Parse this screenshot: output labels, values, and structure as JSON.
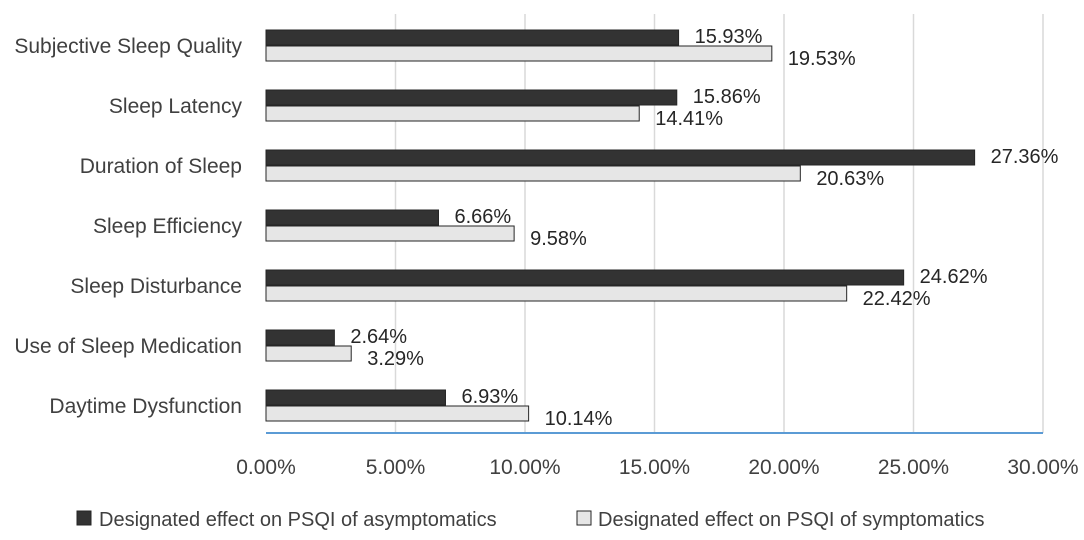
{
  "chart_data": {
    "type": "bar",
    "orientation": "horizontal",
    "title": "",
    "xlabel": "",
    "ylabel": "",
    "xlim": [
      0,
      30
    ],
    "x_ticks": [
      0,
      5,
      10,
      15,
      20,
      25,
      30
    ],
    "x_tick_labels": [
      "0.00%",
      "5.00%",
      "10.00%",
      "15.00%",
      "20.00%",
      "25.00%",
      "30.00%"
    ],
    "grid": true,
    "legend_position": "bottom",
    "categories": [
      "Subjective Sleep Quality",
      "Sleep Latency",
      "Duration of Sleep",
      "Sleep Efficiency",
      "Sleep Disturbance",
      "Use of Sleep Medication",
      "Daytime Dysfunction"
    ],
    "series": [
      {
        "name": "Designated effect on PSQI of asymptomatics",
        "color": "#333333",
        "values": [
          15.93,
          15.86,
          27.36,
          6.66,
          24.62,
          2.64,
          6.93
        ],
        "labels": [
          "15.93%",
          "15.86%",
          "27.36%",
          "6.66%",
          "24.62%",
          "2.64%",
          "6.93%"
        ]
      },
      {
        "name": "Designated effect on PSQI of symptomatics",
        "color": "#e6e6e6",
        "values": [
          19.53,
          14.41,
          20.63,
          9.58,
          22.42,
          3.29,
          10.14
        ],
        "labels": [
          "19.53%",
          "14.41%",
          "20.63%",
          "9.58%",
          "22.42%",
          "3.29%",
          "10.14%"
        ]
      }
    ],
    "colors": {
      "gridline": "#d9d9d9",
      "axis": "#5b9bd5",
      "bar_outline": "#262626"
    }
  }
}
